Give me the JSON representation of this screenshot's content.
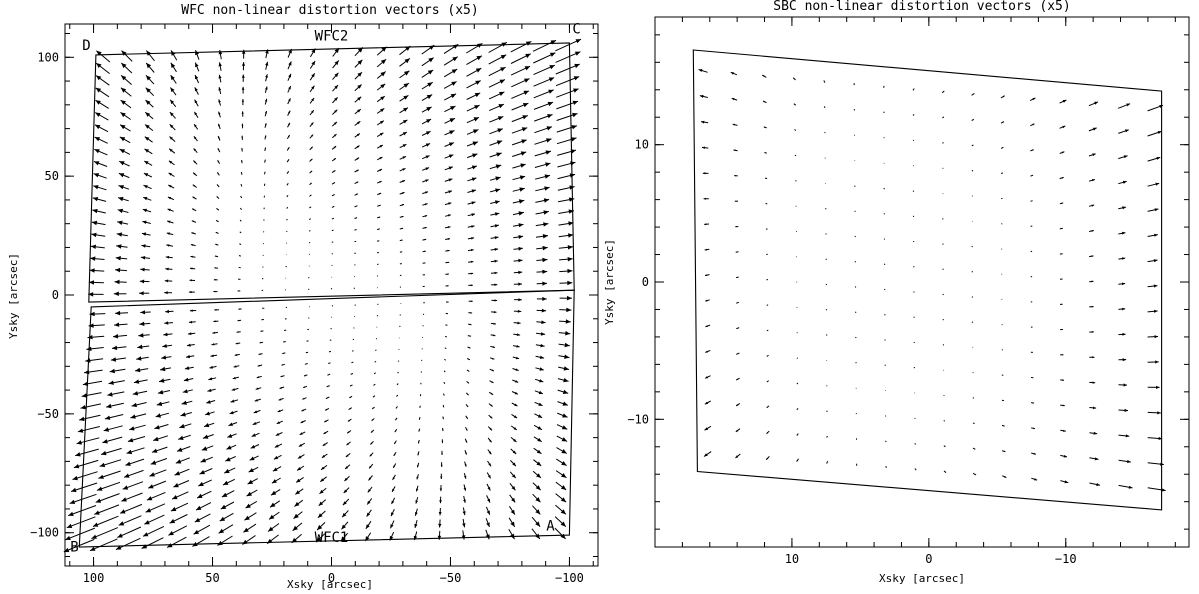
{
  "chart_data": [
    {
      "type": "vector-field",
      "title": "WFC non-linear distortion vectors (x5)",
      "xlabel": "Xsky [arcsec]",
      "ylabel": "Ysky [arcsec]",
      "xlim": [
        112,
        -112
      ],
      "ylim": [
        -114,
        114
      ],
      "xticks": [
        100,
        50,
        0,
        -50,
        -100
      ],
      "xticklabels": [
        "100",
        "50",
        "0",
        "−50",
        "−100"
      ],
      "yticks": [
        100,
        50,
        0,
        -50,
        -100
      ],
      "yticklabels": [
        "100",
        "50",
        "0",
        "−50",
        "−100"
      ],
      "outlines": [
        {
          "name": "WFC2",
          "corners": [
            [
              99,
              101
            ],
            [
              -100,
              106
            ],
            [
              -102,
              2
            ],
            [
              102,
              -3
            ]
          ]
        },
        {
          "name": "WFC1",
          "corners": [
            [
              101,
              -5
            ],
            [
              -102,
              2
            ],
            [
              -100,
              -101
            ],
            [
              106,
              -106
            ]
          ]
        }
      ],
      "annotations": [
        {
          "text": "WFC2",
          "x": 0,
          "y": 107
        },
        {
          "text": "WFC1",
          "x": 0,
          "y": -104
        },
        {
          "text": "A",
          "x": -92,
          "y": -99
        },
        {
          "text": "B",
          "x": 108,
          "y": -108
        },
        {
          "text": "C",
          "x": -103,
          "y": 110
        },
        {
          "text": "D",
          "x": 103,
          "y": 103
        }
      ]
    },
    {
      "type": "vector-field",
      "title": "SBC non-linear distortion vectors (x5)",
      "xlabel": "Xsky [arcsec]",
      "ylabel": "Ysky [arcsec]",
      "xlim": [
        20,
        -19
      ],
      "ylim": [
        -19.3,
        19.3
      ],
      "xticks": [
        10,
        0,
        -10
      ],
      "xticklabels": [
        "10",
        "0",
        "−10"
      ],
      "yticks": [
        10,
        0,
        -10
      ],
      "yticklabels": [
        "10",
        "0",
        "−10"
      ],
      "outlines": [
        {
          "name": "SBC",
          "corners": [
            [
              17.2,
              16.9
            ],
            [
              -17,
              13.9
            ],
            [
              -17,
              -16.6
            ],
            [
              16.9,
              -13.8
            ]
          ]
        }
      ]
    }
  ]
}
